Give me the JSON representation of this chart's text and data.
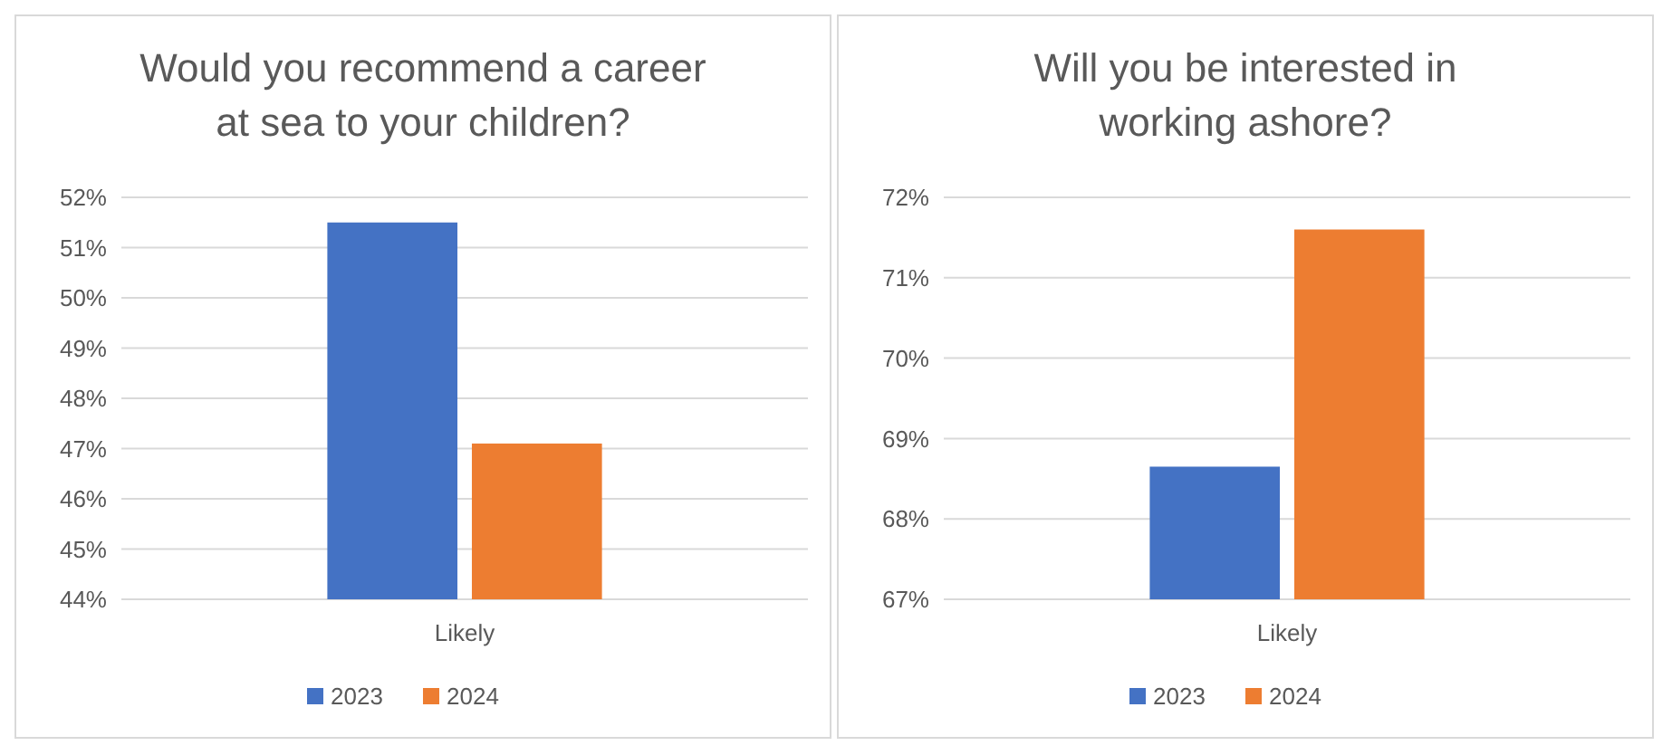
{
  "chart_data": [
    {
      "type": "bar",
      "title": "Would you recommend a career at sea to your children?",
      "categories": [
        "Likely"
      ],
      "series": [
        {
          "name": "2023",
          "color": "#4472c4",
          "values": [
            51.5
          ]
        },
        {
          "name": "2024",
          "color": "#ed7d31",
          "values": [
            47.1
          ]
        }
      ],
      "ylim": [
        44,
        52
      ],
      "yticks": [
        {
          "value": 44,
          "label": "44%"
        },
        {
          "value": 45,
          "label": "45%"
        },
        {
          "value": 46,
          "label": "46%"
        },
        {
          "value": 47,
          "label": "47%"
        },
        {
          "value": 48,
          "label": "48%"
        },
        {
          "value": 49,
          "label": "49%"
        },
        {
          "value": 50,
          "label": "50%"
        },
        {
          "value": 51,
          "label": "51%"
        },
        {
          "value": 52,
          "label": "52%"
        }
      ],
      "grid": "y",
      "legend": "bottom"
    },
    {
      "type": "bar",
      "title": "Will you be interested in working ashore?",
      "categories": [
        "Likely"
      ],
      "series": [
        {
          "name": "2023",
          "color": "#4472c4",
          "values": [
            68.65
          ]
        },
        {
          "name": "2024",
          "color": "#ed7d31",
          "values": [
            71.6
          ]
        }
      ],
      "ylim": [
        67,
        72
      ],
      "yticks": [
        {
          "value": 67,
          "label": "67%"
        },
        {
          "value": 68,
          "label": "68%"
        },
        {
          "value": 69,
          "label": "69%"
        },
        {
          "value": 70,
          "label": "70%"
        },
        {
          "value": 71,
          "label": "71%"
        },
        {
          "value": 72,
          "label": "72%"
        }
      ],
      "grid": "y",
      "legend": "bottom"
    }
  ]
}
